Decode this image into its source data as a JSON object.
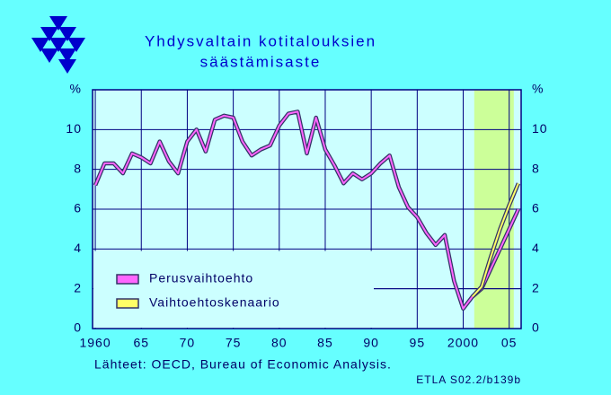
{
  "chart_data": {
    "type": "line",
    "title": [
      "Yhdysvaltain  kotitalouksien",
      "säästämisaste"
    ],
    "x": [
      1960,
      1961,
      1962,
      1963,
      1964,
      1965,
      1966,
      1967,
      1968,
      1969,
      1970,
      1971,
      1972,
      1973,
      1974,
      1975,
      1976,
      1977,
      1978,
      1979,
      1980,
      1981,
      1982,
      1983,
      1984,
      1985,
      1986,
      1987,
      1988,
      1989,
      1990,
      1991,
      1992,
      1993,
      1994,
      1995,
      1996,
      1997,
      1998,
      1999,
      2000,
      2001,
      2002,
      2003,
      2004,
      2005,
      2006
    ],
    "series": [
      {
        "name": "Perusvaihtoehto",
        "color": "#ff66ff",
        "values": [
          7.2,
          8.3,
          8.3,
          7.8,
          8.8,
          8.6,
          8.3,
          9.4,
          8.4,
          7.8,
          9.4,
          10.0,
          8.9,
          10.5,
          10.7,
          10.6,
          9.4,
          8.7,
          9.0,
          9.2,
          10.2,
          10.8,
          10.9,
          8.8,
          10.6,
          9.0,
          8.2,
          7.3,
          7.8,
          7.5,
          7.8,
          8.3,
          8.7,
          7.1,
          6.1,
          5.6,
          4.8,
          4.2,
          4.7,
          2.4,
          1.0,
          1.6,
          2.0,
          3.0,
          4.0,
          5.0,
          6.0
        ]
      },
      {
        "name": "Vaihtoehtoskenaario",
        "color": "#ffff66",
        "values": [
          null,
          null,
          null,
          null,
          null,
          null,
          null,
          null,
          null,
          null,
          null,
          null,
          null,
          null,
          null,
          null,
          null,
          null,
          null,
          null,
          null,
          null,
          null,
          null,
          null,
          null,
          null,
          null,
          null,
          null,
          null,
          null,
          null,
          null,
          null,
          null,
          null,
          null,
          null,
          null,
          null,
          1.6,
          2.1,
          3.6,
          5.0,
          6.2,
          7.3
        ]
      }
    ],
    "xlim": [
      1959.7,
      2006.3
    ],
    "xticks": [
      1960,
      {
        "value": 1965,
        "label": "65"
      },
      {
        "value": 1970,
        "label": "70"
      },
      {
        "value": 1975,
        "label": "75"
      },
      {
        "value": 1980,
        "label": "80"
      },
      {
        "value": 1985,
        "label": "85"
      },
      {
        "value": 1990,
        "label": "90"
      },
      {
        "value": 1995,
        "label": "95"
      },
      2000,
      {
        "value": 2005,
        "label": "05"
      }
    ],
    "ylim": [
      0,
      12
    ],
    "yticks": [
      0,
      2,
      4,
      6,
      8,
      10,
      {
        "value": 12,
        "label": "%"
      }
    ],
    "shaded_region": [
      2001.2,
      2005.5
    ],
    "grid": true,
    "legend": "lower left",
    "source": "Lähteet:   OECD, Bureau of Economic Analysis.",
    "code": "ETLA S02.2/b139b"
  }
}
